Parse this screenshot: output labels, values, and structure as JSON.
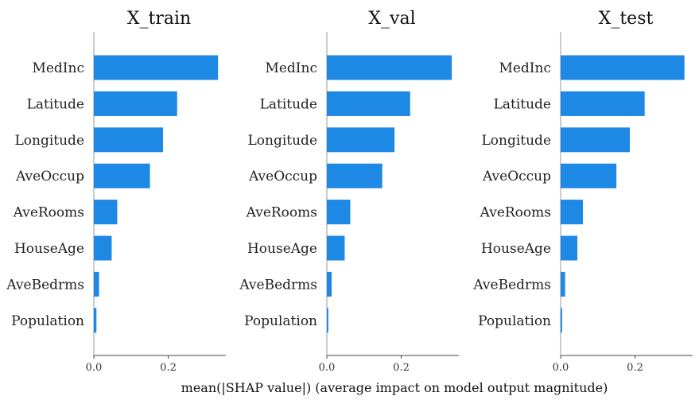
{
  "chart_data": [
    {
      "type": "bar",
      "orientation": "horizontal",
      "title": "X_train",
      "categories": [
        "MedInc",
        "Latitude",
        "Longitude",
        "AveOccup",
        "AveRooms",
        "HouseAge",
        "AveBedrms",
        "Population"
      ],
      "values": [
        0.334,
        0.224,
        0.186,
        0.151,
        0.063,
        0.048,
        0.014,
        0.007
      ],
      "xlim": [
        0,
        0.355
      ],
      "xticks": [
        "0.0",
        "0.2"
      ],
      "xlabel": "",
      "color": "#1E88E5"
    },
    {
      "type": "bar",
      "orientation": "horizontal",
      "title": "X_val",
      "categories": [
        "MedInc",
        "Latitude",
        "Longitude",
        "AveOccup",
        "AveRooms",
        "HouseAge",
        "AveBedrms",
        "Population"
      ],
      "values": [
        0.336,
        0.224,
        0.182,
        0.149,
        0.063,
        0.048,
        0.013,
        0.004
      ],
      "xlim": [
        0,
        0.355
      ],
      "xticks": [
        "0.0",
        "0.2"
      ],
      "xlabel": "",
      "color": "#1E88E5"
    },
    {
      "type": "bar",
      "orientation": "horizontal",
      "title": "X_test",
      "categories": [
        "MedInc",
        "Latitude",
        "Longitude",
        "AveOccup",
        "AveRooms",
        "HouseAge",
        "AveBedrms",
        "Population"
      ],
      "values": [
        0.333,
        0.226,
        0.186,
        0.15,
        0.06,
        0.045,
        0.012,
        0.004
      ],
      "xlim": [
        0,
        0.355
      ],
      "xticks": [
        "0.0",
        "0.2"
      ],
      "xlabel": "",
      "color": "#1E88E5"
    }
  ],
  "shared_xlabel": "mean(|SHAP value|) (average impact on model output magnitude)"
}
